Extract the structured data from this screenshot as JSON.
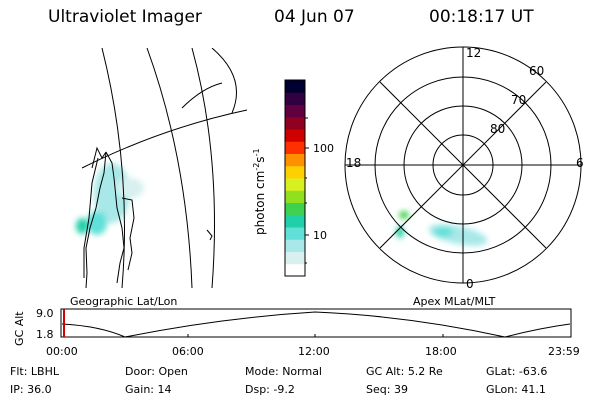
{
  "header": {
    "instrument": "Ultraviolet Imager",
    "date": "04 Jun 07",
    "time": "00:18:17 UT"
  },
  "colorbar": {
    "label_main": "photon cm",
    "label_exp1": "-2",
    "label_mid": "s",
    "label_exp2": "-1",
    "tick_high": "100",
    "tick_low": "10",
    "colors": [
      "#ffffff",
      "#d8f0f0",
      "#a8e8e8",
      "#60e0d8",
      "#20d0a8",
      "#40d050",
      "#90e020",
      "#d8f020",
      "#ffd000",
      "#ff9000",
      "#ff3000",
      "#d00000",
      "#900020",
      "#600040",
      "#300040",
      "#000030"
    ]
  },
  "polar": {
    "lat_labels": [
      "60",
      "70",
      "80"
    ],
    "mlt_labels": [
      "12",
      "18",
      "6",
      "0"
    ]
  },
  "panel_titles": {
    "left": "Geographic Lat/Lon",
    "right": "Apex MLat/MLT"
  },
  "altitude": {
    "axis_label": "GC Alt",
    "tick_high": "9.0",
    "tick_low": "1.8",
    "time_labels": [
      "00:00",
      "06:00",
      "12:00",
      "18:00",
      "23:59"
    ]
  },
  "info": {
    "row1": [
      {
        "label": "Flt:",
        "value": "LBHL"
      },
      {
        "label": "Door:",
        "value": "Open"
      },
      {
        "label": "Mode:",
        "value": "Normal"
      },
      {
        "label": "GC Alt:",
        "value": "5.2 Re"
      },
      {
        "label": "GLat:",
        "value": "-63.6"
      }
    ],
    "row2": [
      {
        "label": "IP:",
        "value": "36.0"
      },
      {
        "label": "Gain:",
        "value": "14"
      },
      {
        "label": "Dsp:",
        "value": "-9.2"
      },
      {
        "label": "Seq:",
        "value": "39"
      },
      {
        "label": "GLon:",
        "value": "41.1"
      }
    ]
  }
}
